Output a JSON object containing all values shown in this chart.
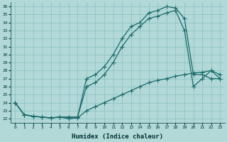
{
  "xlabel": "Humidex (Indice chaleur)",
  "ylabel": "",
  "background_color": "#b2d8d8",
  "grid_color": "#8fc4c4",
  "line_color": "#1a6b6b",
  "xlim": [
    -0.5,
    23.5
  ],
  "ylim": [
    21.5,
    36.5
  ],
  "xticks": [
    0,
    1,
    2,
    3,
    4,
    5,
    6,
    7,
    8,
    9,
    10,
    11,
    12,
    13,
    14,
    15,
    16,
    17,
    18,
    19,
    20,
    21,
    22,
    23
  ],
  "yticks": [
    22,
    23,
    24,
    25,
    26,
    27,
    28,
    29,
    30,
    31,
    32,
    33,
    34,
    35,
    36
  ],
  "line1_x": [
    0,
    1,
    2,
    3,
    4,
    5,
    6,
    7,
    8,
    9,
    10,
    11,
    12,
    13,
    14,
    15,
    16,
    17,
    18,
    19,
    20,
    21,
    22,
    23
  ],
  "line1_y": [
    24.0,
    22.5,
    22.3,
    22.2,
    22.1,
    22.2,
    22.2,
    22.2,
    27.0,
    27.5,
    28.5,
    30.0,
    32.0,
    33.5,
    34.0,
    35.2,
    35.5,
    36.0,
    35.8,
    34.5,
    27.5,
    27.5,
    27.0,
    27.0
  ],
  "line2_x": [
    0,
    1,
    2,
    3,
    4,
    5,
    6,
    7,
    8,
    9,
    10,
    11,
    12,
    13,
    14,
    15,
    16,
    17,
    18,
    19,
    20,
    21,
    22,
    23
  ],
  "line2_y": [
    24.0,
    22.5,
    22.3,
    22.2,
    22.1,
    22.2,
    22.2,
    22.2,
    26.0,
    26.5,
    27.5,
    29.0,
    31.0,
    32.5,
    33.5,
    34.5,
    34.8,
    35.2,
    35.5,
    33.0,
    26.0,
    27.0,
    28.0,
    27.0
  ],
  "line3_x": [
    0,
    1,
    2,
    3,
    4,
    5,
    6,
    7,
    8,
    9,
    10,
    11,
    12,
    13,
    14,
    15,
    16,
    17,
    18,
    19,
    20,
    21,
    22,
    23
  ],
  "line3_y": [
    24.0,
    22.5,
    22.3,
    22.2,
    22.1,
    22.2,
    22.0,
    22.1,
    23.0,
    23.5,
    24.0,
    24.5,
    25.0,
    25.5,
    26.0,
    26.5,
    26.8,
    27.0,
    27.3,
    27.5,
    27.7,
    27.8,
    28.0,
    27.5
  ]
}
